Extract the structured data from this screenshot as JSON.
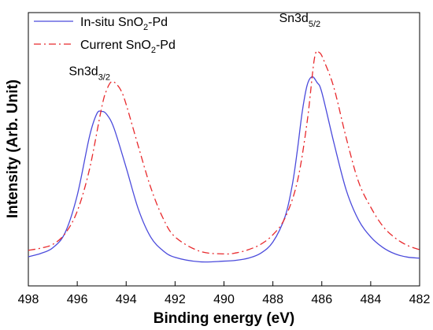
{
  "chart_data": {
    "type": "line",
    "xlabel": "Binding energy (eV)",
    "ylabel": "Intensity (Arb. Unit)",
    "xlim": [
      498,
      482
    ],
    "x_reversed": true,
    "ylim": [
      0,
      100
    ],
    "y_ticks_visible": false,
    "x_ticks": [
      498,
      496,
      494,
      492,
      490,
      488,
      486,
      484,
      482
    ],
    "x_tick_labels": [
      "498",
      "496",
      "494",
      "492",
      "490",
      "488",
      "486",
      "484",
      "482"
    ],
    "grid": false,
    "legend_position": "top-left",
    "series": [
      {
        "name_parts": [
          "In-situ SnO",
          "2",
          "-Pd"
        ],
        "color": "#4b4bdc",
        "style": "solid",
        "x": [
          498,
          497.5,
          497,
          496.5,
          496,
          495.5,
          495.2,
          495.0,
          494.8,
          494.5,
          494,
          493.5,
          493,
          492.5,
          492,
          491,
          490,
          489.5,
          489,
          488.5,
          488,
          487.5,
          487.2,
          487.0,
          486.8,
          486.6,
          486.4,
          486.2,
          486,
          485.5,
          485,
          484.5,
          484,
          483.5,
          483,
          482.5,
          482
        ],
        "y": [
          6.7,
          8.2,
          10.9,
          17.9,
          35.6,
          63.2,
          73.9,
          75.0,
          73.7,
          67.2,
          48.6,
          29.0,
          16.0,
          9.6,
          6.4,
          4.3,
          4.6,
          5.0,
          6.0,
          8.3,
          13.6,
          25.6,
          40.9,
          56.7,
          74.8,
          87.3,
          91.3,
          88.7,
          84.0,
          60.0,
          38.0,
          24.0,
          16.0,
          11.0,
          8.0,
          6.5,
          6.0
        ]
      },
      {
        "name_parts": [
          "Current SnO",
          "2",
          "-Pd"
        ],
        "color": "#e8292c",
        "style": "dashdot",
        "x": [
          498,
          497.5,
          497,
          496.5,
          496,
          495.5,
          495,
          494.8,
          494.6,
          494.4,
          494.2,
          494,
          493.5,
          493,
          492.5,
          492,
          491,
          490,
          489.5,
          489,
          488.5,
          488,
          487.5,
          487,
          486.6,
          486.3,
          486.1,
          485.9,
          485.5,
          485,
          484.5,
          484,
          483.5,
          483,
          482.5,
          482
        ],
        "y": [
          9.7,
          10.7,
          12.5,
          17.5,
          28.1,
          47.8,
          76.9,
          85.0,
          89.0,
          87.9,
          84.6,
          78.3,
          58.5,
          39.4,
          25.0,
          16.0,
          9.3,
          8.0,
          8.5,
          10.0,
          12.5,
          17.0,
          25.0,
          42.0,
          70.0,
          100.0,
          102.7,
          98.5,
          86.0,
          62.5,
          42.0,
          30.0,
          21.0,
          15.5,
          12.0,
          10.0
        ]
      }
    ],
    "annotations": [
      {
        "id": "sn3d32",
        "base": "Sn3d",
        "sub": "3/2",
        "x": 495.5,
        "y": 92
      },
      {
        "id": "sn3d52",
        "base": "Sn3d",
        "sub": "5/2",
        "x": 486.9,
        "y": 117
      }
    ]
  }
}
